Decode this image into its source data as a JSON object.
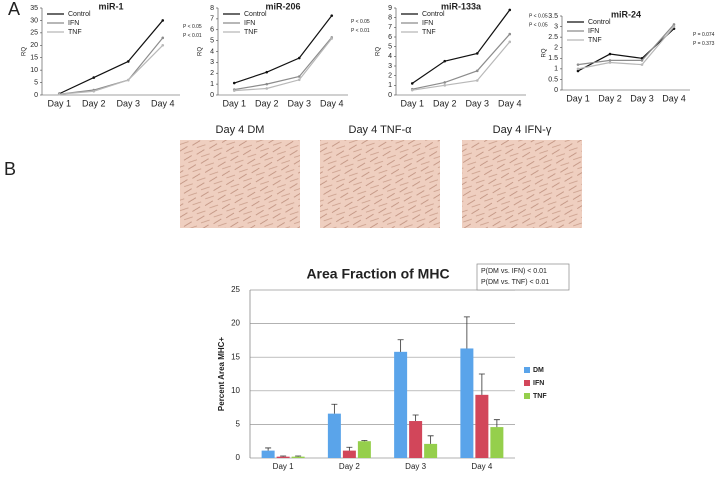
{
  "panels": [
    "A",
    "B"
  ],
  "images": [
    {
      "caption": "Day 4 DM"
    },
    {
      "caption": "Day 4 TNF-α"
    },
    {
      "caption": "Day 4 IFN-γ"
    }
  ],
  "chart_data": [
    {
      "type": "line",
      "title": "miR-1",
      "y_label": "RQ",
      "categories": [
        "Day 1",
        "Day 2",
        "Day 3",
        "Day 4"
      ],
      "series": [
        {
          "name": "Control",
          "color": "#111111",
          "values": [
            0.5,
            7,
            13.5,
            30
          ]
        },
        {
          "name": "IFN",
          "color": "#8c8c8c",
          "values": [
            0.3,
            2,
            6,
            23
          ]
        },
        {
          "name": "TNF",
          "color": "#b8b8b8",
          "values": [
            0.3,
            1.5,
            6,
            20
          ]
        }
      ],
      "ylim": [
        0,
        35
      ],
      "yticks": [
        0,
        5,
        10,
        15,
        20,
        25,
        30,
        35
      ],
      "annotations": [
        "P < 0.05",
        "P < 0.01"
      ]
    },
    {
      "type": "line",
      "title": "miR-206",
      "y_label": "RQ",
      "categories": [
        "Day 1",
        "Day 2",
        "Day 3",
        "Day 4"
      ],
      "series": [
        {
          "name": "Control",
          "color": "#111111",
          "values": [
            1.1,
            2.1,
            3.4,
            7.3
          ]
        },
        {
          "name": "IFN",
          "color": "#8c8c8c",
          "values": [
            0.5,
            1.0,
            1.7,
            5.3
          ]
        },
        {
          "name": "TNF",
          "color": "#b8b8b8",
          "values": [
            0.4,
            0.6,
            1.4,
            5.2
          ]
        }
      ],
      "ylim": [
        0,
        8
      ],
      "yticks": [
        0,
        1,
        2,
        3,
        4,
        5,
        6,
        7,
        8
      ],
      "annotations": [
        "P < 0.05",
        "P < 0.01"
      ]
    },
    {
      "type": "line",
      "title": "miR-133a",
      "y_label": "RQ",
      "categories": [
        "Day 1",
        "Day 2",
        "Day 3",
        "Day 4"
      ],
      "series": [
        {
          "name": "Control",
          "color": "#111111",
          "values": [
            1.2,
            3.5,
            4.3,
            8.8
          ]
        },
        {
          "name": "IFN",
          "color": "#8c8c8c",
          "values": [
            0.6,
            1.3,
            2.5,
            6.3
          ]
        },
        {
          "name": "TNF",
          "color": "#b8b8b8",
          "values": [
            0.5,
            1.0,
            1.5,
            5.5
          ]
        }
      ],
      "ylim": [
        0,
        9
      ],
      "yticks": [
        0,
        1,
        2,
        3,
        4,
        5,
        6,
        7,
        8,
        9
      ],
      "annotations": [
        "P < 0.05",
        "P < 0.05"
      ]
    },
    {
      "type": "line",
      "title": "miR-24",
      "y_label": "RQ",
      "categories": [
        "Day 1",
        "Day 2",
        "Day 3",
        "Day 4"
      ],
      "series": [
        {
          "name": "Control",
          "color": "#111111",
          "values": [
            0.9,
            1.7,
            1.5,
            2.9
          ]
        },
        {
          "name": "IFN",
          "color": "#8c8c8c",
          "values": [
            1.2,
            1.4,
            1.4,
            3.1
          ]
        },
        {
          "name": "TNF",
          "color": "#b8b8b8",
          "values": [
            1.0,
            1.3,
            1.2,
            3.0
          ]
        }
      ],
      "ylim": [
        0,
        3.5
      ],
      "yticks": [
        0,
        0.5,
        1,
        1.5,
        2,
        2.5,
        3,
        3.5
      ],
      "annotations": [
        "P = 0.074",
        "P = 0.373"
      ]
    },
    {
      "type": "bar",
      "title": "Area Fraction of MHC",
      "y_label": "Percent Area MHC+",
      "categories": [
        "Day 1",
        "Day 2",
        "Day 3",
        "Day 4"
      ],
      "series": [
        {
          "name": "DM",
          "color": "#5aa4ea",
          "values": [
            1.1,
            6.6,
            15.8,
            16.3
          ],
          "errors": [
            0.4,
            1.4,
            1.8,
            4.7
          ]
        },
        {
          "name": "IFN",
          "color": "#d2465a",
          "values": [
            0.2,
            1.1,
            5.5,
            9.4
          ],
          "errors": [
            0.1,
            0.5,
            0.9,
            3.1
          ]
        },
        {
          "name": "TNF",
          "color": "#95cf4c",
          "values": [
            0.2,
            2.5,
            2.1,
            4.6
          ],
          "errors": [
            0.1,
            0.1,
            1.2,
            1.1
          ]
        }
      ],
      "ylim": [
        0,
        25
      ],
      "yticks": [
        0,
        5,
        10,
        15,
        20,
        25
      ],
      "grid": true,
      "annotations": [
        "P(DM vs. IFN) < 0.01",
        "P(DM vs. TNF) < 0.01"
      ]
    }
  ]
}
